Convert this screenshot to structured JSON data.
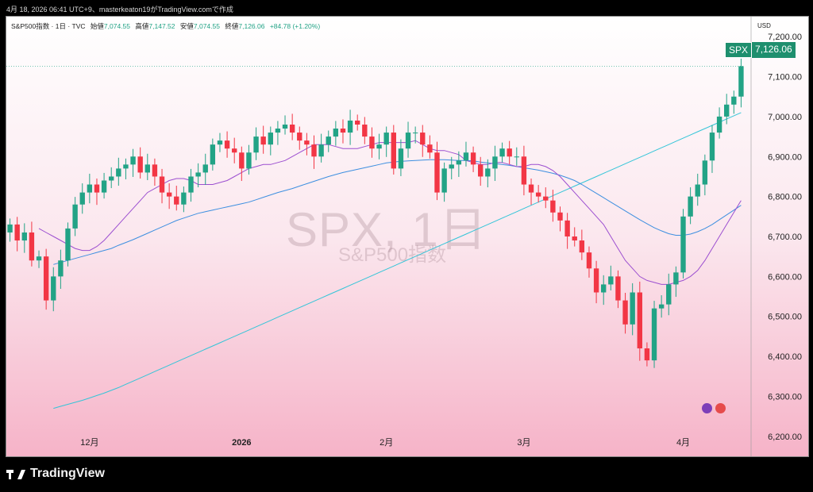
{
  "caption": "4月 18, 2026 06:41 UTC+9、masterkeaton19がTradingView.comで作成",
  "legend": {
    "symbol": "S&P500指数 · 1日 · TVC",
    "open_label": "始値",
    "open": "7,074.55",
    "high_label": "高値",
    "high": "7,147.52",
    "low_label": "安値",
    "low": "7,074.55",
    "close_label": "終値",
    "close": "7,126.06",
    "change": "+84.78 (+1.20%)"
  },
  "currency": "USD",
  "watermark": {
    "main": "SPX, 1日",
    "sub": "S&P500指数"
  },
  "price_tag": {
    "symbol": "SPX",
    "value": "7,126.06"
  },
  "brand": "TradingView",
  "colors": {
    "up": "#22a386",
    "down": "#f23645",
    "ma_fast": "#9c4fd0",
    "ma_mid": "#3d8fe0",
    "ma_slow": "#33c5d8"
  },
  "chart_data": {
    "type": "candlestick",
    "ylim": [
      6150,
      7250
    ],
    "y_ticks": [
      "7,200.00",
      "7,100.00",
      "7,000.00",
      "6,900.00",
      "6,800.00",
      "6,700.00",
      "6,600.00",
      "6,500.00",
      "6,400.00",
      "6,300.00",
      "6,200.00"
    ],
    "y_tick_values": [
      7200,
      7100,
      7000,
      6900,
      6800,
      6700,
      6600,
      6500,
      6400,
      6300,
      6200
    ],
    "x_labels": [
      {
        "label": "12月",
        "index": 11
      },
      {
        "label": "2026",
        "index": 32
      },
      {
        "label": "2月",
        "index": 52
      },
      {
        "label": "3月",
        "index": 71
      },
      {
        "label": "4月",
        "index": 93
      }
    ],
    "closes": [
      6730,
      6690,
      6710,
      6640,
      6650,
      6540,
      6600,
      6640,
      6720,
      6780,
      6810,
      6830,
      6810,
      6840,
      6850,
      6870,
      6880,
      6900,
      6860,
      6880,
      6850,
      6810,
      6800,
      6780,
      6810,
      6850,
      6860,
      6880,
      6930,
      6940,
      6920,
      6910,
      6870,
      6910,
      6950,
      6930,
      6960,
      6970,
      6980,
      6960,
      6940,
      6930,
      6900,
      6930,
      6950,
      6970,
      6960,
      6990,
      6980,
      6950,
      6920,
      6930,
      6960,
      6870,
      6920,
      6960,
      6960,
      6930,
      6910,
      6810,
      6870,
      6880,
      6890,
      6910,
      6880,
      6850,
      6870,
      6900,
      6920,
      6900,
      6900,
      6830,
      6810,
      6800,
      6790,
      6760,
      6740,
      6700,
      6690,
      6660,
      6620,
      6560,
      6580,
      6600,
      6540,
      6480,
      6560,
      6420,
      6390,
      6520,
      6530,
      6580,
      6610,
      6750,
      6800,
      6830,
      6890,
      6960,
      7000,
      7030,
      7050,
      7126
    ],
    "ma_fast": [
      6720,
      6710,
      6700,
      6690,
      6680,
      6670,
      6665,
      6665,
      6675,
      6690,
      6710,
      6730,
      6750,
      6770,
      6790,
      6810,
      6820,
      6830,
      6840,
      6845,
      6845,
      6840,
      6830,
      6830,
      6830,
      6835,
      6840,
      6850,
      6860,
      6870,
      6875,
      6880,
      6880,
      6885,
      6890,
      6900,
      6910,
      6920,
      6930,
      6930,
      6930,
      6925,
      6920,
      6920,
      6920,
      6925,
      6930,
      6935,
      6935,
      6935,
      6935,
      6935,
      6940,
      6930,
      6920,
      6915,
      6915,
      6910,
      6905,
      6890,
      6885,
      6880,
      6880,
      6885,
      6885,
      6880,
      6875,
      6875,
      6880,
      6880,
      6875,
      6865,
      6850,
      6830,
      6810,
      6790,
      6770,
      6750,
      6730,
      6700,
      6670,
      6640,
      6620,
      6600,
      6590,
      6585,
      6580,
      6580,
      6585,
      6590,
      6600,
      6615,
      6640,
      6670,
      6700,
      6730,
      6760,
      6790
    ],
    "ma_mid": [
      6630,
      6635,
      6640,
      6645,
      6650,
      6655,
      6660,
      6665,
      6670,
      6678,
      6685,
      6692,
      6700,
      6708,
      6716,
      6724,
      6732,
      6740,
      6746,
      6752,
      6758,
      6762,
      6766,
      6770,
      6774,
      6778,
      6782,
      6786,
      6792,
      6798,
      6804,
      6810,
      6815,
      6820,
      6826,
      6832,
      6838,
      6844,
      6850,
      6855,
      6860,
      6864,
      6868,
      6872,
      6876,
      6880,
      6884,
      6886,
      6888,
      6889,
      6890,
      6891,
      6892,
      6892,
      6892,
      6891,
      6890,
      6890,
      6889,
      6886,
      6884,
      6882,
      6880,
      6878,
      6875,
      6872,
      6869,
      6866,
      6862,
      6858,
      6853,
      6847,
      6840,
      6830,
      6819,
      6808,
      6797,
      6786,
      6775,
      6764,
      6753,
      6742,
      6732,
      6722,
      6714,
      6707,
      6703,
      6703,
      6706,
      6712,
      6720,
      6730,
      6742,
      6754,
      6766,
      6778
    ],
    "ma_slow": [
      6270,
      6275,
      6280,
      6285,
      6290,
      6296,
      6302,
      6308,
      6315,
      6322,
      6330,
      6338,
      6346,
      6354,
      6362,
      6370,
      6378,
      6386,
      6394,
      6402,
      6410,
      6418,
      6426,
      6434,
      6442,
      6450,
      6458,
      6466,
      6474,
      6482,
      6490,
      6498,
      6506,
      6514,
      6522,
      6530,
      6538,
      6546,
      6554,
      6562,
      6570,
      6578,
      6586,
      6594,
      6602,
      6610,
      6618,
      6626,
      6634,
      6642,
      6650,
      6658,
      6666,
      6674,
      6682,
      6690,
      6698,
      6706,
      6714,
      6722,
      6730,
      6738,
      6746,
      6754,
      6762,
      6770,
      6778,
      6786,
      6794,
      6802,
      6810,
      6818,
      6826,
      6834,
      6842,
      6850,
      6858,
      6866,
      6874,
      6882,
      6890,
      6898,
      6906,
      6914,
      6922,
      6930,
      6938,
      6946,
      6954,
      6962,
      6970,
      6978,
      6986,
      6994,
      7002,
      7010
    ]
  }
}
